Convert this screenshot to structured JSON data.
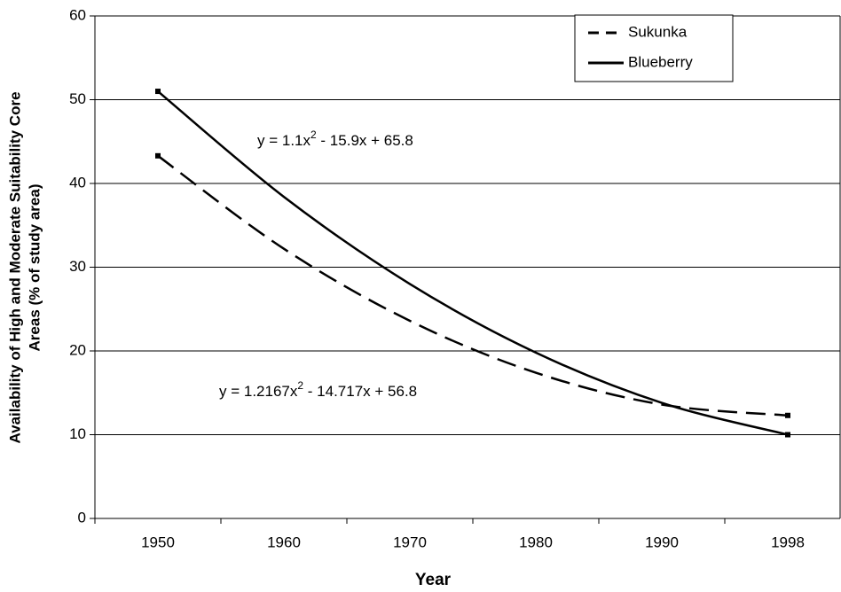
{
  "chart_data": {
    "type": "line",
    "xlabel": "Year",
    "ylabel": [
      "Availability of High and Moderate Suitability Core",
      "Areas (% of study area)"
    ],
    "categories": [
      "1950",
      "1960",
      "1970",
      "1980",
      "1990",
      "1998"
    ],
    "series": [
      {
        "name": "Sukunka",
        "color": "#000000",
        "style": "dashed",
        "values": [
          43.3,
          32.2,
          23.6,
          17.4,
          13.6,
          12.3
        ]
      },
      {
        "name": "Blueberry",
        "color": "#000000",
        "style": "solid",
        "values": [
          51.0,
          38.4,
          28.0,
          19.8,
          13.8,
          10.0
        ]
      }
    ],
    "ylim": [
      0,
      60
    ],
    "yticks": [
      0,
      10,
      20,
      30,
      40,
      50,
      60
    ],
    "grid": true,
    "legend": "top-right",
    "annotations": [
      {
        "parts": [
          "y = 1.1x",
          "2",
          " - 15.9x + 65.8"
        ]
      },
      {
        "parts": [
          "y = 1.2167x",
          "2",
          " - 14.717x + 56.8"
        ]
      }
    ]
  }
}
